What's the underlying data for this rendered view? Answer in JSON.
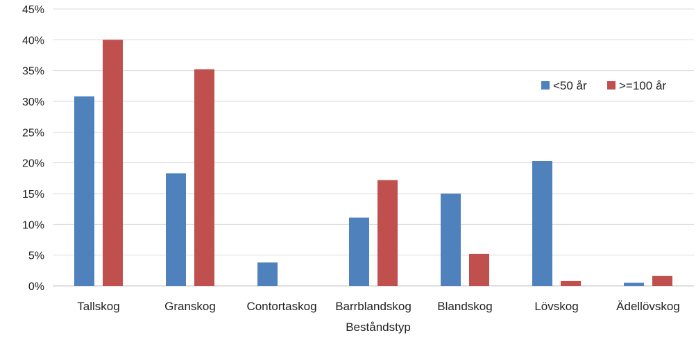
{
  "chart_data": {
    "type": "bar",
    "title": "",
    "xlabel": "Beståndstyp",
    "ylabel": "",
    "categories": [
      "Tallskog",
      "Granskog",
      "Contortaskog",
      "Barrblandskog",
      "Blandskog",
      "Lövskog",
      "Ädellövskog"
    ],
    "series": [
      {
        "name": "<50 år",
        "color": "#4F81BD",
        "values": [
          30.8,
          18.3,
          3.8,
          11.1,
          15.0,
          20.3,
          0.5
        ]
      },
      {
        "name": ">=100 år",
        "color": "#C0504D",
        "values": [
          40.0,
          35.2,
          0.0,
          17.2,
          5.2,
          0.8,
          1.6
        ]
      }
    ],
    "ylim": [
      0,
      45
    ],
    "yticks": [
      0,
      5,
      10,
      15,
      20,
      25,
      30,
      35,
      40,
      45
    ],
    "ytick_labels": [
      "0%",
      "5%",
      "10%",
      "15%",
      "20%",
      "25%",
      "30%",
      "35%",
      "40%",
      "45%"
    ],
    "grid": true,
    "legend_position": "top-right",
    "gridline_color": "#D9D9D9"
  }
}
